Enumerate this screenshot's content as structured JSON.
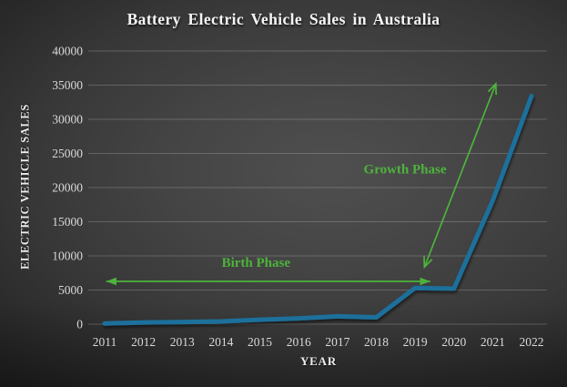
{
  "chart": {
    "title": "Battery Electric Vehicle Sales in Australia",
    "xlabel": "YEAR",
    "ylabel": "ELECTRIC VEHICLE SALES"
  },
  "chart_data": {
    "type": "line",
    "title": "Battery Electric Vehicle Sales in Australia",
    "xlabel": "YEAR",
    "ylabel": "ELECTRIC VEHICLE SALES",
    "categories": [
      2011,
      2012,
      2013,
      2014,
      2015,
      2016,
      2017,
      2018,
      2019,
      2020,
      2021,
      2022
    ],
    "values": [
      100,
      250,
      320,
      400,
      650,
      850,
      1150,
      1000,
      5300,
      5200,
      18100,
      33400
    ],
    "ylim": [
      0,
      40000
    ],
    "ytick_step": 5000,
    "grid": "horizontal",
    "legend": "none",
    "line_color": "#1f709b",
    "annotation_color": "#4db33c",
    "annotations": [
      {
        "label": "Birth Phase",
        "label_pos": {
          "year": 2014.9,
          "value": 8400
        },
        "arrow": {
          "style": "double-filled",
          "from": {
            "year": 2011.04,
            "value": 6270
          },
          "to": {
            "year": 2019.39,
            "value": 6270
          }
        }
      },
      {
        "label": "Growth Phase",
        "label_pos": {
          "year": 2018.74,
          "value": 22100
        },
        "arrow": {
          "style": "double-open",
          "from": {
            "year": 2019.24,
            "value": 8350
          },
          "to": {
            "year": 2021.08,
            "value": 35200
          }
        }
      }
    ]
  }
}
